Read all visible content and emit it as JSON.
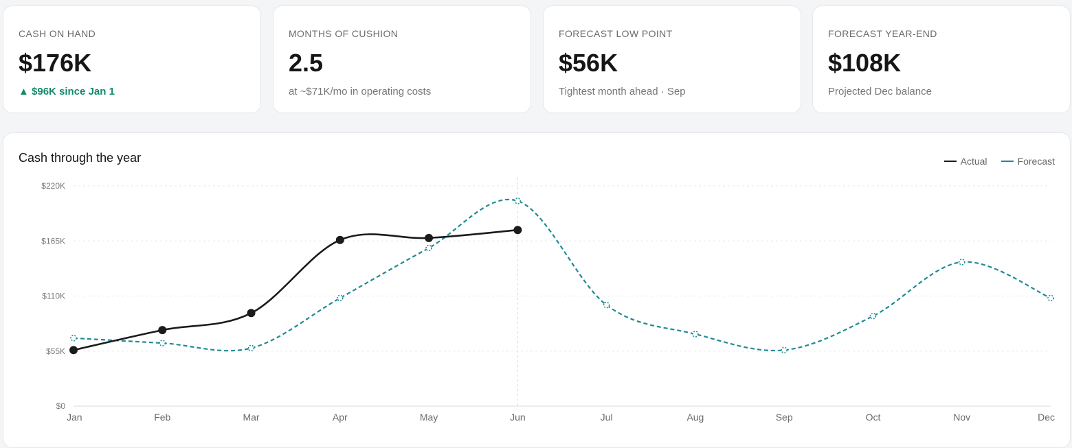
{
  "kpis": [
    {
      "label": "CASH ON HAND",
      "value": "$176K",
      "sub": "▲ $96K since Jan 1",
      "sub_positive": true
    },
    {
      "label": "MONTHS OF CUSHION",
      "value": "2.5",
      "sub": "at ~$71K/mo in operating costs",
      "sub_positive": false
    },
    {
      "label": "FORECAST LOW POINT",
      "value": "$56K",
      "sub": "Tightest month ahead · Sep",
      "sub_positive": false
    },
    {
      "label": "FORECAST YEAR-END",
      "value": "$108K",
      "sub": "Projected Dec balance",
      "sub_positive": false
    }
  ],
  "colors": {
    "actual": "#1b1b1b",
    "forecast": "#1f8a93",
    "positive": "#148a6b"
  },
  "chart_data": {
    "type": "line",
    "title": "Cash through the year",
    "x": [
      "Jan",
      "Feb",
      "Mar",
      "Apr",
      "May",
      "Jun",
      "Jul",
      "Aug",
      "Sep",
      "Oct",
      "Nov",
      "Dec"
    ],
    "y_ticks": [
      "$0",
      "$55K",
      "$110K",
      "$165K",
      "$220K"
    ],
    "ylim": [
      0,
      220000
    ],
    "grid": true,
    "legend_position": "top-right",
    "today_marker": "Jun",
    "series": [
      {
        "name": "Actual",
        "style": "solid",
        "values": [
          56000,
          76000,
          93000,
          166000,
          168000,
          176000,
          null,
          null,
          null,
          null,
          null,
          null
        ]
      },
      {
        "name": "Forecast",
        "style": "dashed",
        "values": [
          68000,
          63000,
          58000,
          108000,
          158000,
          205000,
          101000,
          72000,
          56000,
          90000,
          144000,
          108000
        ]
      }
    ]
  }
}
